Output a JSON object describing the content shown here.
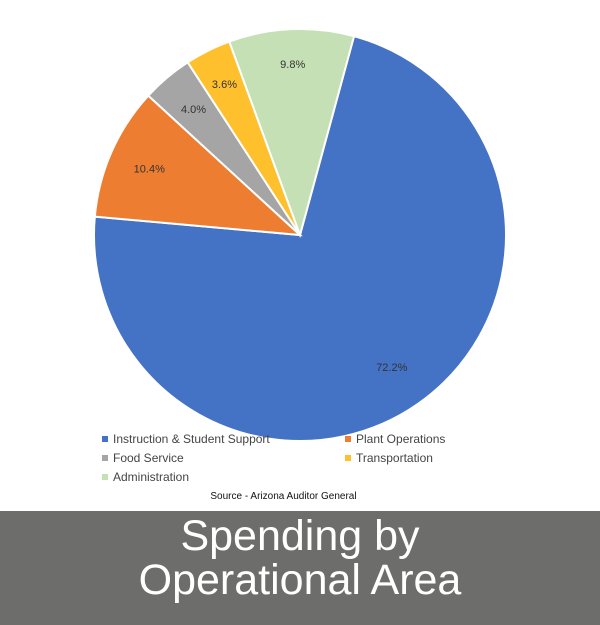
{
  "chart_data": {
    "type": "pie",
    "categories": [
      "Instruction & Student Support",
      "Plant Operations",
      "Food Service",
      "Transportation",
      "Administration"
    ],
    "values": [
      72.2,
      10.4,
      4.0,
      3.6,
      9.8
    ],
    "labels": [
      "72.2%",
      "10.4%",
      "4.0%",
      "3.6%",
      "9.8%"
    ],
    "colors": [
      "#4472c4",
      "#ed7d31",
      "#a5a5a5",
      "#ffc02e",
      "#c5e0b4"
    ],
    "legend_position": "bottom",
    "title": "Spending by Operational Area"
  },
  "source": "Source - Arizona Auditor General",
  "title_lines": [
    "Spending by",
    "Operational Area"
  ]
}
